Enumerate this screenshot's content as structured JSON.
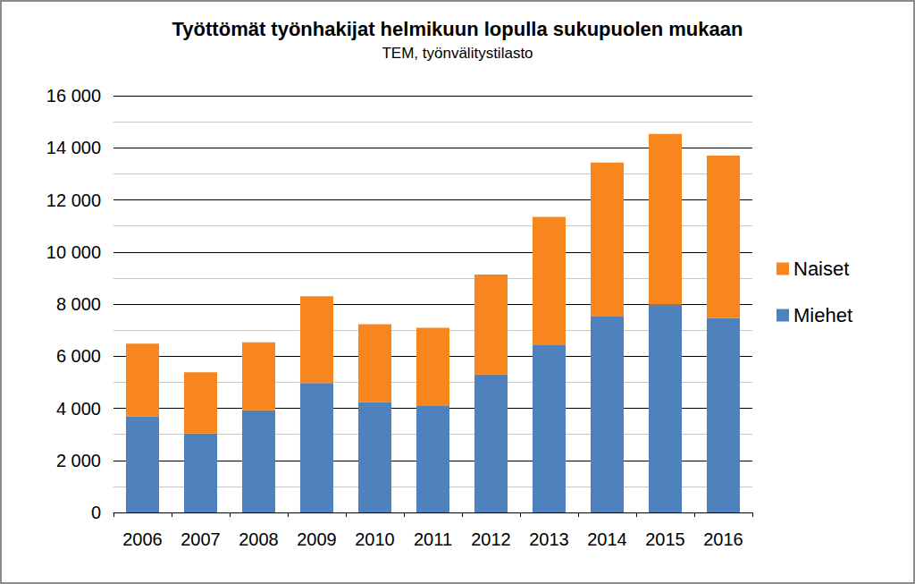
{
  "chart_data": {
    "type": "bar",
    "stacked": true,
    "title": "Työttömät työnhakijat helmikuun lopulla sukupuolen mukaan",
    "subtitle": "TEM, työnvälitystilasto",
    "categories": [
      "2006",
      "2007",
      "2008",
      "2009",
      "2010",
      "2011",
      "2012",
      "2013",
      "2014",
      "2015",
      "2016"
    ],
    "series": [
      {
        "name": "Miehet",
        "color": "#4f81bd",
        "values": [
          3680,
          3030,
          3920,
          4970,
          4230,
          4090,
          5300,
          6450,
          7520,
          7970,
          7460
        ]
      },
      {
        "name": "Naiset",
        "color": "#f7861e",
        "values": [
          2800,
          2350,
          2610,
          3330,
          3000,
          3000,
          3830,
          4900,
          5910,
          6560,
          6240
        ]
      }
    ],
    "ylim": [
      0,
      16000
    ],
    "yticks": [
      0,
      {
        "value": 2000,
        "label": "2 000"
      },
      {
        "value": 4000,
        "label": "4 000"
      },
      {
        "value": 6000,
        "label": "6 000"
      },
      {
        "value": 8000,
        "label": "8 000"
      },
      {
        "value": 10000,
        "label": "10 000"
      },
      {
        "value": 12000,
        "label": "12 000"
      },
      {
        "value": 14000,
        "label": "14 000"
      },
      {
        "value": 16000,
        "label": "16 000"
      }
    ],
    "grid": true,
    "legend": "right"
  }
}
